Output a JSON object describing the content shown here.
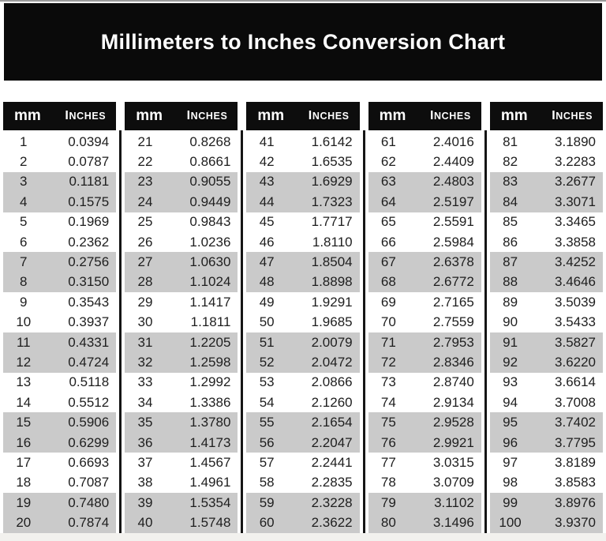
{
  "header": {
    "title": "Millimeters to Inches Conversion Chart"
  },
  "colors": {
    "accent_black": "#0a0a0a",
    "header_black": "#0d0d0d",
    "stripe_gray": "#cacaca",
    "title_text": "#ffffff",
    "body_text": "#1e1e1e"
  },
  "chart_data": {
    "type": "table",
    "title": "Millimeters to Inches Conversion Chart",
    "col_headers": [
      "mm",
      "Inches"
    ],
    "layout": {
      "column_groups": 5,
      "rows_per_group": 20,
      "striping": "rows alternate in pairs: two white rows then two gray rows",
      "dividers": "black vertical rules between column groups, starting below headers"
    },
    "groups": [
      {
        "rows": [
          [
            "1",
            "0.0394"
          ],
          [
            "2",
            "0.0787"
          ],
          [
            "3",
            "0.1181"
          ],
          [
            "4",
            "0.1575"
          ],
          [
            "5",
            "0.1969"
          ],
          [
            "6",
            "0.2362"
          ],
          [
            "7",
            "0.2756"
          ],
          [
            "8",
            "0.3150"
          ],
          [
            "9",
            "0.3543"
          ],
          [
            "10",
            "0.3937"
          ],
          [
            "11",
            "0.4331"
          ],
          [
            "12",
            "0.4724"
          ],
          [
            "13",
            "0.5118"
          ],
          [
            "14",
            "0.5512"
          ],
          [
            "15",
            "0.5906"
          ],
          [
            "16",
            "0.6299"
          ],
          [
            "17",
            "0.6693"
          ],
          [
            "18",
            "0.7087"
          ],
          [
            "19",
            "0.7480"
          ],
          [
            "20",
            "0.7874"
          ]
        ]
      },
      {
        "rows": [
          [
            "21",
            "0.8268"
          ],
          [
            "22",
            "0.8661"
          ],
          [
            "23",
            "0.9055"
          ],
          [
            "24",
            "0.9449"
          ],
          [
            "25",
            "0.9843"
          ],
          [
            "26",
            "1.0236"
          ],
          [
            "27",
            "1.0630"
          ],
          [
            "28",
            "1.1024"
          ],
          [
            "29",
            "1.1417"
          ],
          [
            "30",
            "1.1811"
          ],
          [
            "31",
            "1.2205"
          ],
          [
            "32",
            "1.2598"
          ],
          [
            "33",
            "1.2992"
          ],
          [
            "34",
            "1.3386"
          ],
          [
            "35",
            "1.3780"
          ],
          [
            "36",
            "1.4173"
          ],
          [
            "37",
            "1.4567"
          ],
          [
            "38",
            "1.4961"
          ],
          [
            "39",
            "1.5354"
          ],
          [
            "40",
            "1.5748"
          ]
        ]
      },
      {
        "rows": [
          [
            "41",
            "1.6142"
          ],
          [
            "42",
            "1.6535"
          ],
          [
            "43",
            "1.6929"
          ],
          [
            "44",
            "1.7323"
          ],
          [
            "45",
            "1.7717"
          ],
          [
            "46",
            "1.8110"
          ],
          [
            "47",
            "1.8504"
          ],
          [
            "48",
            "1.8898"
          ],
          [
            "49",
            "1.9291"
          ],
          [
            "50",
            "1.9685"
          ],
          [
            "51",
            "2.0079"
          ],
          [
            "52",
            "2.0472"
          ],
          [
            "53",
            "2.0866"
          ],
          [
            "54",
            "2.1260"
          ],
          [
            "55",
            "2.1654"
          ],
          [
            "56",
            "2.2047"
          ],
          [
            "57",
            "2.2441"
          ],
          [
            "58",
            "2.2835"
          ],
          [
            "59",
            "2.3228"
          ],
          [
            "60",
            "2.3622"
          ]
        ]
      },
      {
        "rows": [
          [
            "61",
            "2.4016"
          ],
          [
            "62",
            "2.4409"
          ],
          [
            "63",
            "2.4803"
          ],
          [
            "64",
            "2.5197"
          ],
          [
            "65",
            "2.5591"
          ],
          [
            "66",
            "2.5984"
          ],
          [
            "67",
            "2.6378"
          ],
          [
            "68",
            "2.6772"
          ],
          [
            "69",
            "2.7165"
          ],
          [
            "70",
            "2.7559"
          ],
          [
            "71",
            "2.7953"
          ],
          [
            "72",
            "2.8346"
          ],
          [
            "73",
            "2.8740"
          ],
          [
            "74",
            "2.9134"
          ],
          [
            "75",
            "2.9528"
          ],
          [
            "76",
            "2.9921"
          ],
          [
            "77",
            "3.0315"
          ],
          [
            "78",
            "3.0709"
          ],
          [
            "79",
            "3.1102"
          ],
          [
            "80",
            "3.1496"
          ]
        ]
      },
      {
        "rows": [
          [
            "81",
            "3.1890"
          ],
          [
            "82",
            "3.2283"
          ],
          [
            "83",
            "3.2677"
          ],
          [
            "84",
            "3.3071"
          ],
          [
            "85",
            "3.3465"
          ],
          [
            "86",
            "3.3858"
          ],
          [
            "87",
            "3.4252"
          ],
          [
            "88",
            "3.4646"
          ],
          [
            "89",
            "3.5039"
          ],
          [
            "90",
            "3.5433"
          ],
          [
            "91",
            "3.5827"
          ],
          [
            "92",
            "3.6220"
          ],
          [
            "93",
            "3.6614"
          ],
          [
            "94",
            "3.7008"
          ],
          [
            "95",
            "3.7402"
          ],
          [
            "96",
            "3.7795"
          ],
          [
            "97",
            "3.8189"
          ],
          [
            "98",
            "3.8583"
          ],
          [
            "99",
            "3.8976"
          ],
          [
            "100",
            "3.9370"
          ]
        ]
      }
    ]
  }
}
